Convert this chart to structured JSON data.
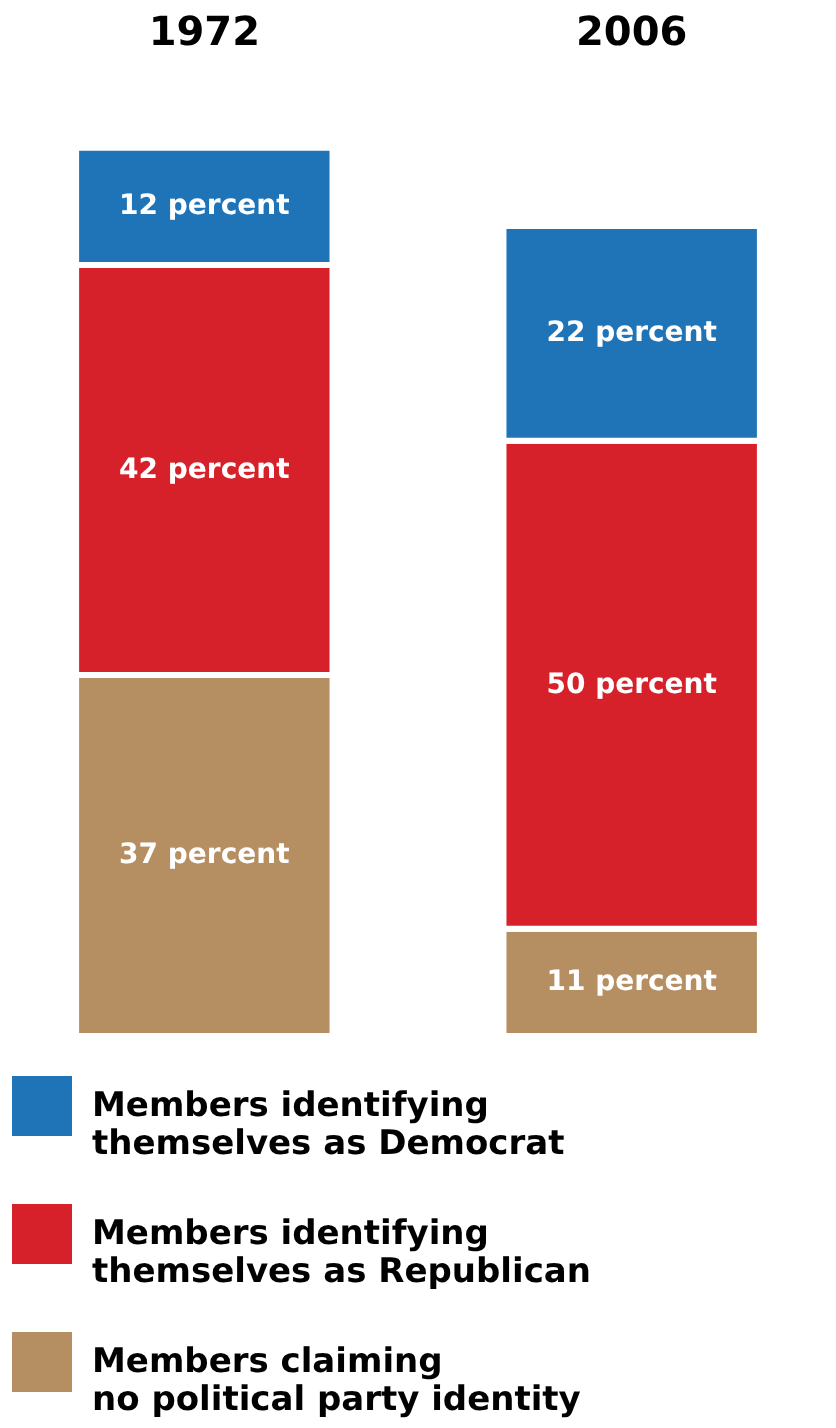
{
  "chart_data": {
    "type": "bar",
    "stacked": true,
    "categories": [
      "1972",
      "2006"
    ],
    "legend": "bottom",
    "series": [
      {
        "name": "Members claiming no political party identity",
        "color": "#b58e62",
        "values": [
          37,
          11
        ],
        "value_labels": [
          "37 percent",
          "11 percent"
        ]
      },
      {
        "name": "Members identifying themselves as Republican",
        "color": "#d7212a",
        "values": [
          42,
          50
        ],
        "value_labels": [
          "42 percent",
          "50 percent"
        ]
      },
      {
        "name": "Members identifying themselves as Democrat",
        "color": "#1f74b8",
        "values": [
          12,
          22
        ],
        "value_labels": [
          "12 percent",
          "22 percent"
        ]
      }
    ]
  }
}
